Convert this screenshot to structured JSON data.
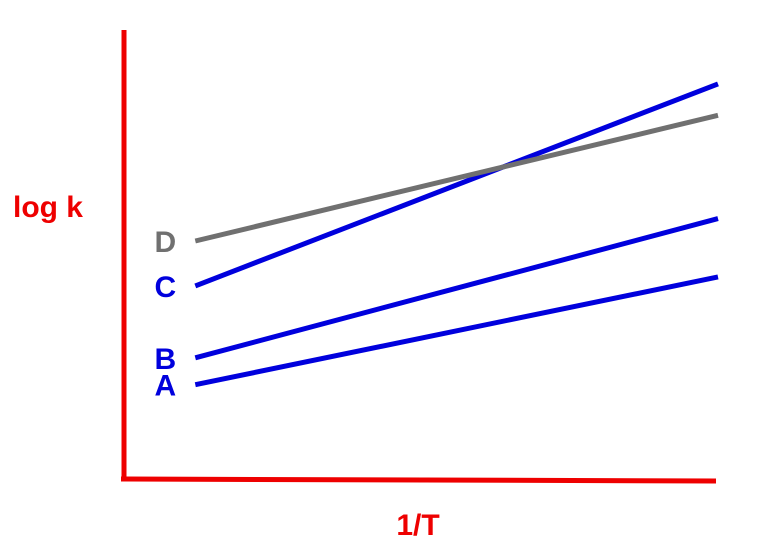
{
  "chart_data": {
    "type": "line",
    "xlabel": "1/T",
    "ylabel": "log k",
    "xlim": [
      0,
      100
    ],
    "ylim": [
      0,
      100
    ],
    "ticks": "none",
    "grid": false,
    "legend": "none",
    "axis_color": "#ee0000",
    "series": [
      {
        "name": "A",
        "color": "#0000dd",
        "x": [
          12,
          100
        ],
        "y": [
          21,
          45
        ]
      },
      {
        "name": "B",
        "color": "#0000dd",
        "x": [
          12,
          100
        ],
        "y": [
          27,
          58
        ]
      },
      {
        "name": "C",
        "color": "#0000dd",
        "x": [
          12,
          100
        ],
        "y": [
          43,
          88
        ]
      },
      {
        "name": "D",
        "color": "#707070",
        "x": [
          12,
          100
        ],
        "y": [
          53,
          81
        ]
      }
    ]
  }
}
